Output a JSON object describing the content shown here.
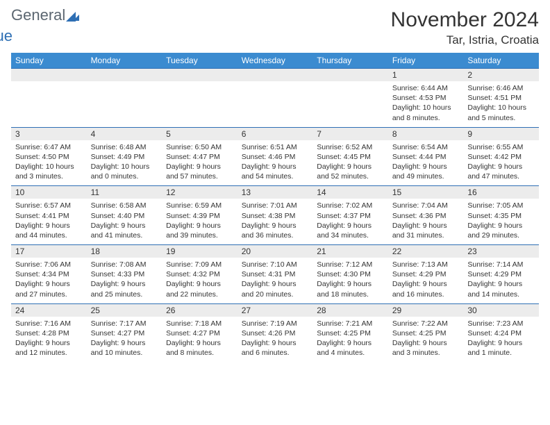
{
  "logo": {
    "line1": "General",
    "line2": "Blue"
  },
  "header": {
    "month": "November 2024",
    "location": "Tar, Istria, Croatia"
  },
  "style": {
    "header_bg": "#3b8bd0",
    "header_fg": "#ffffff",
    "daynum_bg": "#ececec",
    "border_color": "#2e6fb4",
    "body_font_size": 10.5,
    "daynum_font_size": 12,
    "header_font_size": 12,
    "title_font_size": 30,
    "location_font_size": 17
  },
  "weekdays": [
    "Sunday",
    "Monday",
    "Tuesday",
    "Wednesday",
    "Thursday",
    "Friday",
    "Saturday"
  ],
  "weeks": [
    [
      null,
      null,
      null,
      null,
      null,
      {
        "n": "1",
        "sr": "6:44 AM",
        "ss": "4:53 PM",
        "dl": "10 hours and 8 minutes."
      },
      {
        "n": "2",
        "sr": "6:46 AM",
        "ss": "4:51 PM",
        "dl": "10 hours and 5 minutes."
      }
    ],
    [
      {
        "n": "3",
        "sr": "6:47 AM",
        "ss": "4:50 PM",
        "dl": "10 hours and 3 minutes."
      },
      {
        "n": "4",
        "sr": "6:48 AM",
        "ss": "4:49 PM",
        "dl": "10 hours and 0 minutes."
      },
      {
        "n": "5",
        "sr": "6:50 AM",
        "ss": "4:47 PM",
        "dl": "9 hours and 57 minutes."
      },
      {
        "n": "6",
        "sr": "6:51 AM",
        "ss": "4:46 PM",
        "dl": "9 hours and 54 minutes."
      },
      {
        "n": "7",
        "sr": "6:52 AM",
        "ss": "4:45 PM",
        "dl": "9 hours and 52 minutes."
      },
      {
        "n": "8",
        "sr": "6:54 AM",
        "ss": "4:44 PM",
        "dl": "9 hours and 49 minutes."
      },
      {
        "n": "9",
        "sr": "6:55 AM",
        "ss": "4:42 PM",
        "dl": "9 hours and 47 minutes."
      }
    ],
    [
      {
        "n": "10",
        "sr": "6:57 AM",
        "ss": "4:41 PM",
        "dl": "9 hours and 44 minutes."
      },
      {
        "n": "11",
        "sr": "6:58 AM",
        "ss": "4:40 PM",
        "dl": "9 hours and 41 minutes."
      },
      {
        "n": "12",
        "sr": "6:59 AM",
        "ss": "4:39 PM",
        "dl": "9 hours and 39 minutes."
      },
      {
        "n": "13",
        "sr": "7:01 AM",
        "ss": "4:38 PM",
        "dl": "9 hours and 36 minutes."
      },
      {
        "n": "14",
        "sr": "7:02 AM",
        "ss": "4:37 PM",
        "dl": "9 hours and 34 minutes."
      },
      {
        "n": "15",
        "sr": "7:04 AM",
        "ss": "4:36 PM",
        "dl": "9 hours and 31 minutes."
      },
      {
        "n": "16",
        "sr": "7:05 AM",
        "ss": "4:35 PM",
        "dl": "9 hours and 29 minutes."
      }
    ],
    [
      {
        "n": "17",
        "sr": "7:06 AM",
        "ss": "4:34 PM",
        "dl": "9 hours and 27 minutes."
      },
      {
        "n": "18",
        "sr": "7:08 AM",
        "ss": "4:33 PM",
        "dl": "9 hours and 25 minutes."
      },
      {
        "n": "19",
        "sr": "7:09 AM",
        "ss": "4:32 PM",
        "dl": "9 hours and 22 minutes."
      },
      {
        "n": "20",
        "sr": "7:10 AM",
        "ss": "4:31 PM",
        "dl": "9 hours and 20 minutes."
      },
      {
        "n": "21",
        "sr": "7:12 AM",
        "ss": "4:30 PM",
        "dl": "9 hours and 18 minutes."
      },
      {
        "n": "22",
        "sr": "7:13 AM",
        "ss": "4:29 PM",
        "dl": "9 hours and 16 minutes."
      },
      {
        "n": "23",
        "sr": "7:14 AM",
        "ss": "4:29 PM",
        "dl": "9 hours and 14 minutes."
      }
    ],
    [
      {
        "n": "24",
        "sr": "7:16 AM",
        "ss": "4:28 PM",
        "dl": "9 hours and 12 minutes."
      },
      {
        "n": "25",
        "sr": "7:17 AM",
        "ss": "4:27 PM",
        "dl": "9 hours and 10 minutes."
      },
      {
        "n": "26",
        "sr": "7:18 AM",
        "ss": "4:27 PM",
        "dl": "9 hours and 8 minutes."
      },
      {
        "n": "27",
        "sr": "7:19 AM",
        "ss": "4:26 PM",
        "dl": "9 hours and 6 minutes."
      },
      {
        "n": "28",
        "sr": "7:21 AM",
        "ss": "4:25 PM",
        "dl": "9 hours and 4 minutes."
      },
      {
        "n": "29",
        "sr": "7:22 AM",
        "ss": "4:25 PM",
        "dl": "9 hours and 3 minutes."
      },
      {
        "n": "30",
        "sr": "7:23 AM",
        "ss": "4:24 PM",
        "dl": "9 hours and 1 minute."
      }
    ]
  ],
  "labels": {
    "sunrise": "Sunrise: ",
    "sunset": "Sunset: ",
    "daylight": "Daylight: "
  }
}
